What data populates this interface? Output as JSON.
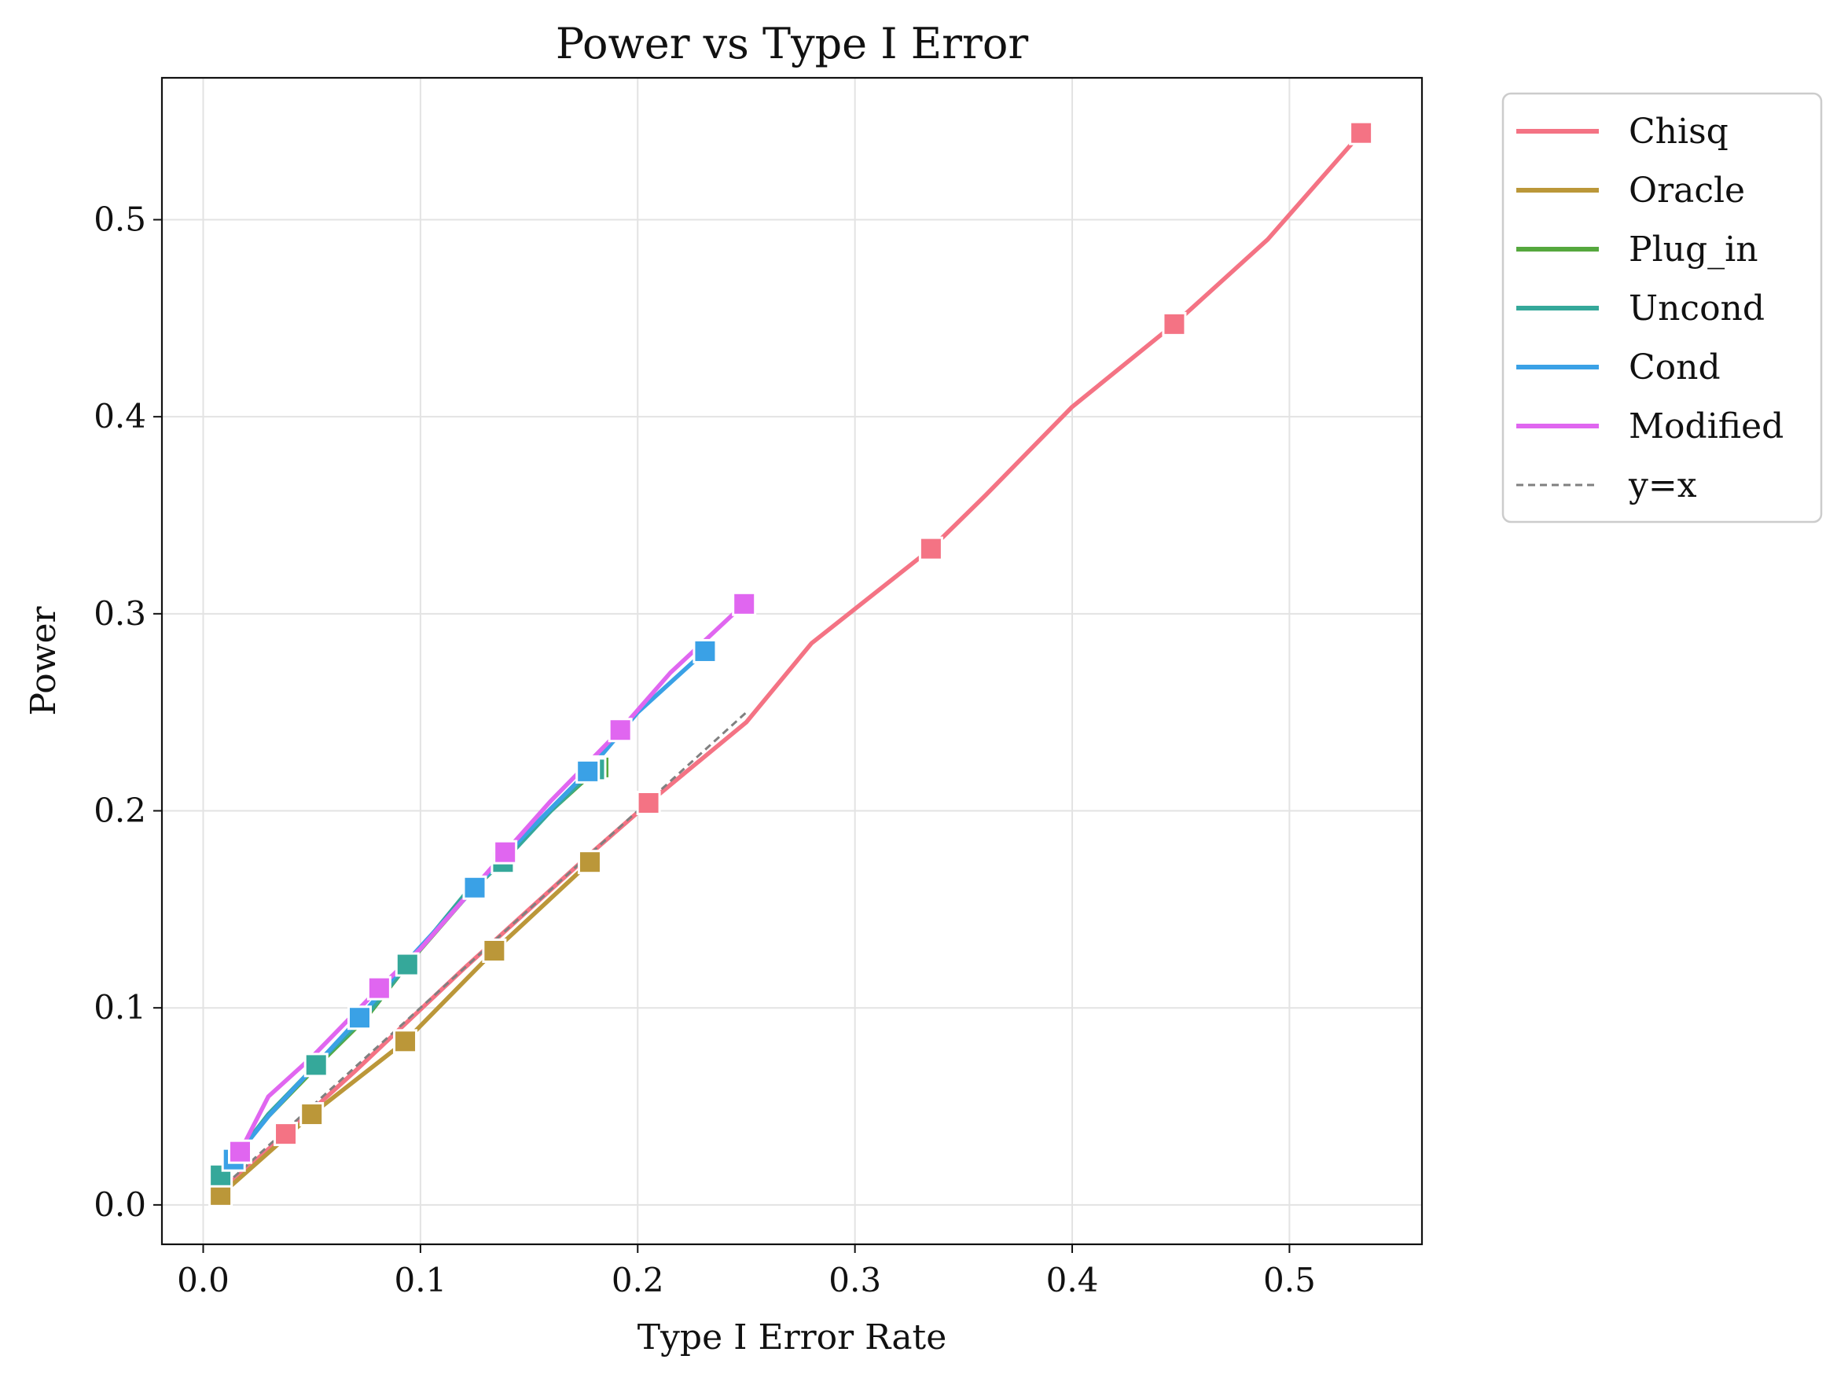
{
  "chart_data": {
    "type": "line",
    "title": "Power vs Type I Error",
    "xlabel": "Type I Error Rate",
    "ylabel": "Power",
    "xlim": [
      -0.019,
      0.561
    ],
    "ylim": [
      -0.02,
      0.572
    ],
    "x_ticks": [
      0.0,
      0.1,
      0.2,
      0.3,
      0.4,
      0.5
    ],
    "x_tick_labels": [
      "0.0",
      "0.1",
      "0.2",
      "0.3",
      "0.4",
      "0.5"
    ],
    "y_ticks": [
      0.0,
      0.1,
      0.2,
      0.3,
      0.4,
      0.5
    ],
    "y_tick_labels": [
      "0.0",
      "0.1",
      "0.2",
      "0.3",
      "0.4",
      "0.5"
    ],
    "grid": true,
    "legend_position": "outside-right-top",
    "series": [
      {
        "name": "Chisq",
        "color": "#f47384",
        "x": [
          0.008,
          0.038,
          0.07,
          0.12,
          0.178,
          0.205,
          0.25,
          0.28,
          0.335,
          0.36,
          0.4,
          0.447,
          0.49,
          0.533
        ],
        "y": [
          0.007,
          0.036,
          0.068,
          0.12,
          0.178,
          0.204,
          0.245,
          0.285,
          0.333,
          0.36,
          0.405,
          0.447,
          0.49,
          0.544
        ],
        "markers": [
          0.038,
          0.205,
          0.335,
          0.447,
          0.533
        ]
      },
      {
        "name": "Oracle",
        "color": "#bb9739",
        "x": [
          0.008,
          0.05,
          0.093,
          0.134,
          0.178
        ],
        "y": [
          0.005,
          0.046,
          0.083,
          0.129,
          0.174
        ],
        "markers": [
          0.008,
          0.05,
          0.093,
          0.134,
          0.178
        ]
      },
      {
        "name": "Plug_in",
        "color": "#55a83e",
        "x": [
          0.008,
          0.016,
          0.03,
          0.052,
          0.075,
          0.094,
          0.12,
          0.138,
          0.16,
          0.182
        ],
        "y": [
          0.015,
          0.026,
          0.045,
          0.07,
          0.095,
          0.122,
          0.155,
          0.175,
          0.2,
          0.222
        ],
        "markers": [
          0.182
        ]
      },
      {
        "name": "Uncond",
        "color": "#35a89a",
        "x": [
          0.008,
          0.016,
          0.03,
          0.052,
          0.075,
          0.094,
          0.12,
          0.138,
          0.16,
          0.18
        ],
        "y": [
          0.015,
          0.026,
          0.046,
          0.071,
          0.096,
          0.122,
          0.157,
          0.174,
          0.2,
          0.221
        ],
        "markers": [
          0.008,
          0.052,
          0.094,
          0.138,
          0.18
        ]
      },
      {
        "name": "Cond",
        "color": "#3aa1e6",
        "x": [
          0.014,
          0.03,
          0.072,
          0.095,
          0.125,
          0.15,
          0.177,
          0.2,
          0.231
        ],
        "y": [
          0.023,
          0.045,
          0.095,
          0.125,
          0.161,
          0.19,
          0.22,
          0.25,
          0.281
        ],
        "markers": [
          0.014,
          0.072,
          0.125,
          0.177,
          0.231
        ]
      },
      {
        "name": "Modified",
        "color": "#e066f0",
        "x": [
          0.017,
          0.03,
          0.05,
          0.081,
          0.1,
          0.139,
          0.16,
          0.192,
          0.215,
          0.249
        ],
        "y": [
          0.027,
          0.055,
          0.075,
          0.11,
          0.13,
          0.179,
          0.205,
          0.241,
          0.27,
          0.305
        ],
        "markers": [
          0.017,
          0.081,
          0.139,
          0.192,
          0.249
        ]
      },
      {
        "name": "y=x",
        "color": "#808080",
        "dashed": true,
        "x": [
          0.01,
          0.25
        ],
        "y": [
          0.01,
          0.25
        ],
        "markers": []
      }
    ]
  }
}
